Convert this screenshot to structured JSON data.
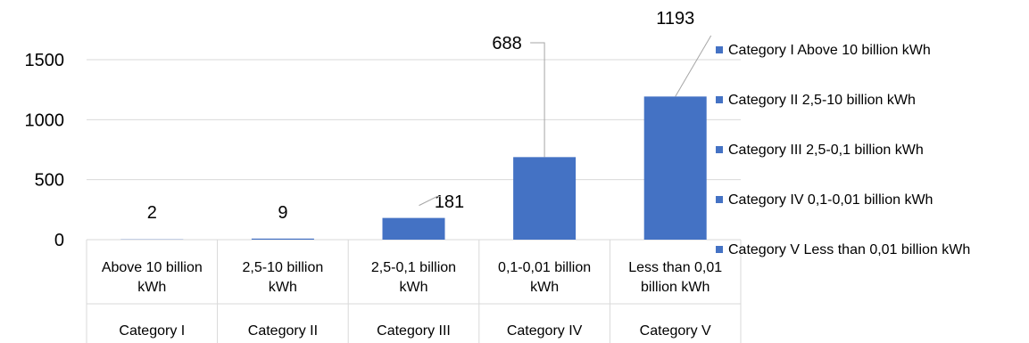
{
  "chart_data": {
    "type": "bar",
    "categories": [
      {
        "line1": "Above 10 billion",
        "line2": "kWh",
        "group": "Category I"
      },
      {
        "line1": "2,5-10 billion",
        "line2": "kWh",
        "group": "Category II"
      },
      {
        "line1": "2,5-0,1 billion",
        "line2": "kWh",
        "group": "Category III"
      },
      {
        "line1": "0,1-0,01 billion",
        "line2": "kWh",
        "group": "Category IV"
      },
      {
        "line1": "Less than 0,01",
        "line2": "billion kWh",
        "group": "Category V"
      }
    ],
    "values": [
      2,
      9,
      181,
      688,
      1193
    ],
    "data_labels": [
      "2",
      "9",
      "181",
      "688",
      "1193"
    ],
    "ylim": [
      0,
      1500
    ],
    "yticks": [
      0,
      500,
      1000,
      1500
    ],
    "ytick_labels": [
      "0",
      "500",
      "1000",
      "1500"
    ],
    "grid": true,
    "legend_position": "right",
    "legend": [
      "Category I Above 10 billion kWh",
      "Category II 2,5-10 billion kWh",
      "Category III 2,5-0,1 billion kWh",
      "Category IV 0,1-0,01 billion kWh",
      "Category V Less than 0,01 billion kWh"
    ],
    "bar_color": "#4472c4",
    "grid_color": "#d9d9d9",
    "leader_color": "#a6a6a6"
  }
}
